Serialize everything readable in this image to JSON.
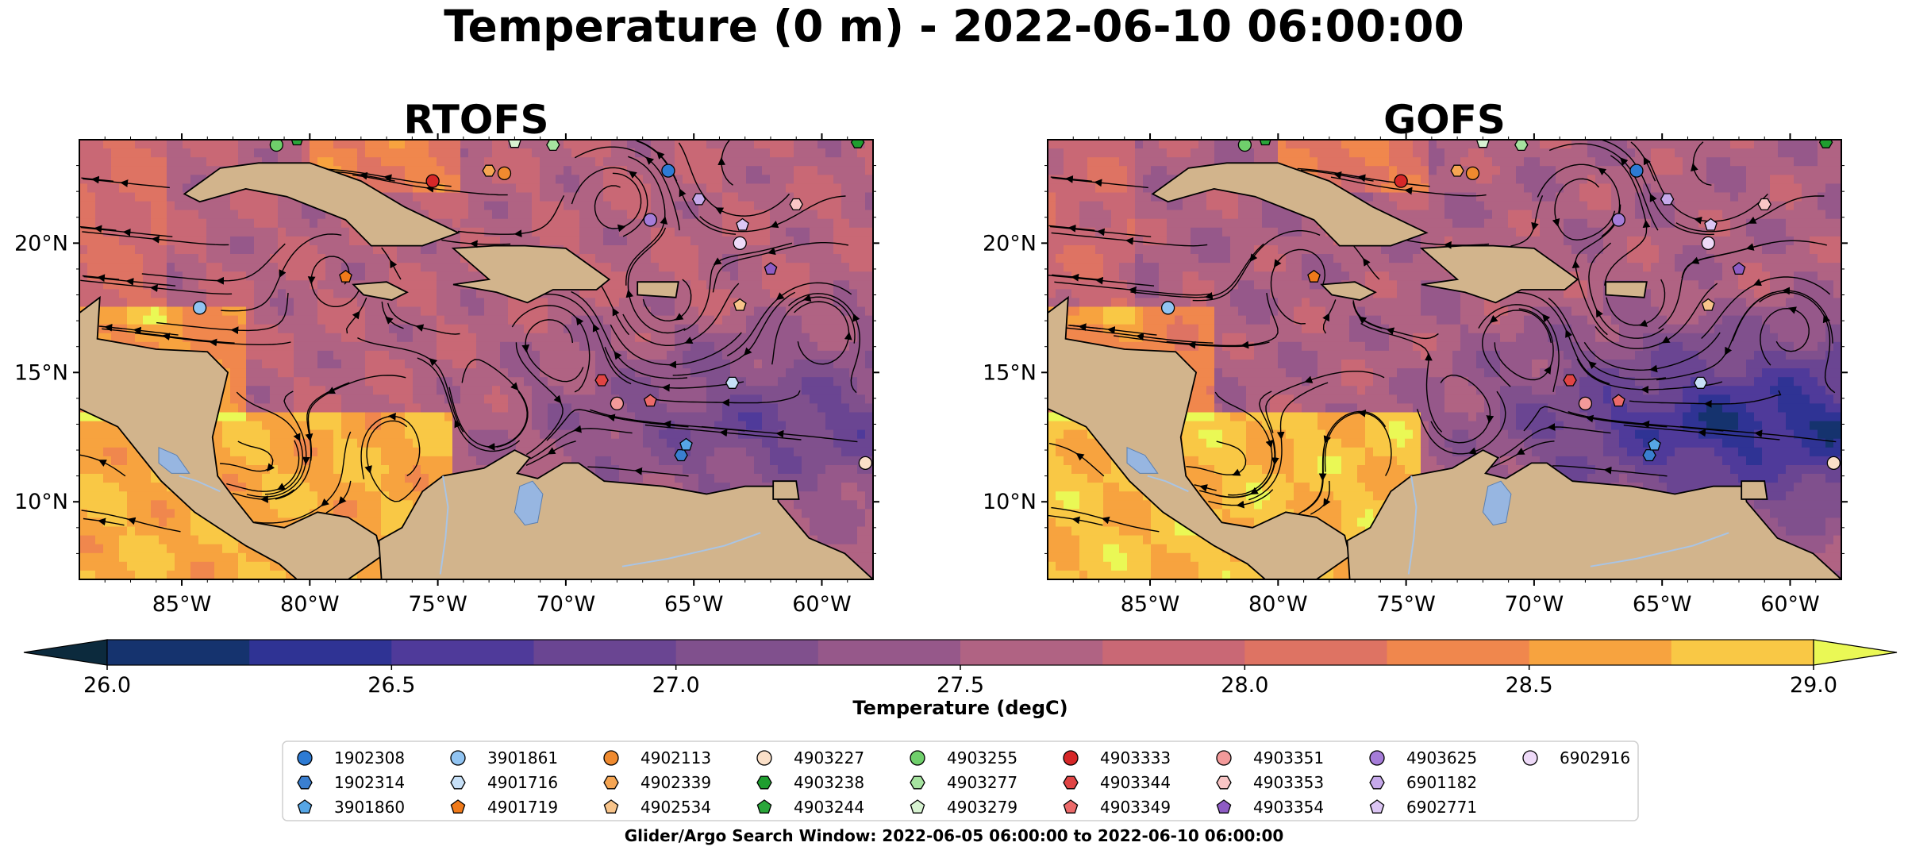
{
  "figure": {
    "title": "Temperature (0 m) - 2022-06-10 06:00:00",
    "footnote": "Glider/Argo Search Window: 2022-06-05 06:00:00 to 2022-06-10 06:00:00"
  },
  "map": {
    "lon_range": [
      -89,
      -58
    ],
    "lat_range": [
      7,
      24
    ],
    "x_ticks": [
      {
        "lon": -85,
        "label": "85°W"
      },
      {
        "lon": -80,
        "label": "80°W"
      },
      {
        "lon": -75,
        "label": "75°W"
      },
      {
        "lon": -70,
        "label": "70°W"
      },
      {
        "lon": -65,
        "label": "65°W"
      },
      {
        "lon": -60,
        "label": "60°W"
      }
    ],
    "y_ticks": [
      {
        "lat": 20,
        "label": "20°N"
      },
      {
        "lat": 15,
        "label": "15°N"
      },
      {
        "lat": 10,
        "label": "10°N"
      }
    ],
    "colors": {
      "land": "#d2b48c",
      "lakes": "#97b6e1",
      "rivers": "#a9c4e4",
      "streamlines": "#000000"
    },
    "panels": [
      {
        "title": "RTOFS",
        "base_temp": 27.7,
        "east_cool": 0.8,
        "shelf_warm": 1.0
      },
      {
        "title": "GOFS",
        "base_temp": 27.6,
        "east_cool": 1.3,
        "shelf_warm": 1.2
      }
    ]
  },
  "colorbar": {
    "label": "Temperature (degC)",
    "min": 26.0,
    "max": 29.0,
    "step": 0.25,
    "extend": "both",
    "ticks": [
      {
        "value": 26.0,
        "label": "26.0"
      },
      {
        "value": 26.5,
        "label": "26.5"
      },
      {
        "value": 27.0,
        "label": "27.0"
      },
      {
        "value": 27.5,
        "label": "27.5"
      },
      {
        "value": 28.0,
        "label": "28.0"
      },
      {
        "value": 28.5,
        "label": "28.5"
      },
      {
        "value": 29.0,
        "label": "29.0"
      }
    ],
    "colors": [
      "#0c2a3d",
      "#15336e",
      "#2f3394",
      "#4f3a9a",
      "#6a4592",
      "#80508d",
      "#96588a",
      "#b06383",
      "#c96875",
      "#de7363",
      "#f0874d",
      "#f7a33f",
      "#f9c845",
      "#eaf855"
    ]
  },
  "platforms": [
    {
      "id": "1902308",
      "marker": "circle",
      "color": "#2d7bd4",
      "lon": -66.0,
      "lat": 22.8
    },
    {
      "id": "1902314",
      "marker": "hexagon",
      "color": "#3a7fd0",
      "lon": -65.5,
      "lat": 11.8
    },
    {
      "id": "3901860",
      "marker": "pentagon",
      "color": "#56a6e6",
      "lon": -65.3,
      "lat": 12.2
    },
    {
      "id": "3901861",
      "marker": "circle",
      "color": "#91c4f2",
      "lon": -84.3,
      "lat": 17.5
    },
    {
      "id": "4901716",
      "marker": "hexagon",
      "color": "#c7e0f7",
      "lon": -63.5,
      "lat": 14.6
    },
    {
      "id": "4901719",
      "marker": "pentagon",
      "color": "#f07a1a",
      "lon": -78.6,
      "lat": 18.7
    },
    {
      "id": "4902113",
      "marker": "circle",
      "color": "#ef8a2f",
      "lon": -72.4,
      "lat": 22.7
    },
    {
      "id": "4902339",
      "marker": "hexagon",
      "color": "#f5a553",
      "lon": -73.0,
      "lat": 22.8
    },
    {
      "id": "4902534",
      "marker": "pentagon",
      "color": "#f8c48a",
      "lon": -63.2,
      "lat": 17.6
    },
    {
      "id": "4903227",
      "marker": "circle",
      "color": "#fbe0c8",
      "lon": -58.3,
      "lat": 11.5
    },
    {
      "id": "4903238",
      "marker": "hexagon",
      "color": "#1e9e2f",
      "lon": -58.6,
      "lat": 23.9
    },
    {
      "id": "4903244",
      "marker": "pentagon",
      "color": "#2aa63a",
      "lon": -80.5,
      "lat": 24.0
    },
    {
      "id": "4903255",
      "marker": "circle",
      "color": "#6fcf6b",
      "lon": -81.3,
      "lat": 23.8
    },
    {
      "id": "4903277",
      "marker": "hexagon",
      "color": "#a6e3a0",
      "lon": -70.5,
      "lat": 23.8
    },
    {
      "id": "4903279",
      "marker": "pentagon",
      "color": "#d8f3d2",
      "lon": -72.0,
      "lat": 23.9
    },
    {
      "id": "4903333",
      "marker": "circle",
      "color": "#d62728",
      "lon": -75.2,
      "lat": 22.4
    },
    {
      "id": "4903344",
      "marker": "hexagon",
      "color": "#e04444",
      "lon": -68.6,
      "lat": 14.7
    },
    {
      "id": "4903349",
      "marker": "pentagon",
      "color": "#ec6a6a",
      "lon": -66.7,
      "lat": 13.9
    },
    {
      "id": "4903351",
      "marker": "circle",
      "color": "#f39a9a",
      "lon": -68.0,
      "lat": 13.8
    },
    {
      "id": "4903353",
      "marker": "hexagon",
      "color": "#f9c6c6",
      "lon": -61.0,
      "lat": 21.5
    },
    {
      "id": "4903354",
      "marker": "pentagon",
      "color": "#8e5cc4",
      "lon": -62.0,
      "lat": 19.0
    },
    {
      "id": "4903625",
      "marker": "circle",
      "color": "#a57cd8",
      "lon": -66.7,
      "lat": 20.9
    },
    {
      "id": "6901182",
      "marker": "hexagon",
      "color": "#c6a9ea",
      "lon": -64.8,
      "lat": 21.7
    },
    {
      "id": "6902771",
      "marker": "pentagon",
      "color": "#dcc6f4",
      "lon": -63.1,
      "lat": 20.7
    },
    {
      "id": "6902916",
      "marker": "circle",
      "color": "#eedaf8",
      "lon": -63.2,
      "lat": 20.0
    }
  ]
}
